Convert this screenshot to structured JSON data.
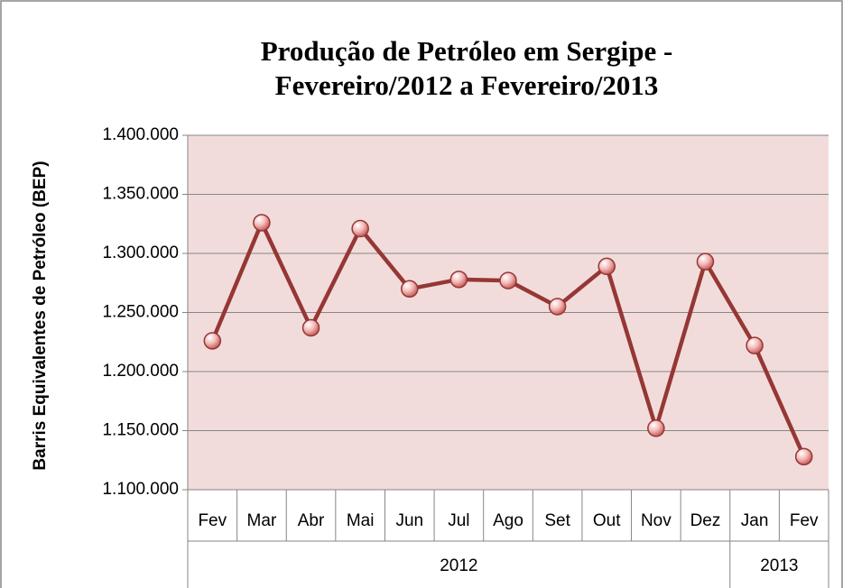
{
  "chart_data": {
    "type": "line",
    "title": "Produção de Petróleo em Sergipe - Fevereiro/2012 a Fevereiro/2013",
    "y_label": "Barris Equivalentes de Petróleo (BEP)",
    "category_groups": [
      {
        "label": "2012",
        "categories": [
          "Fev",
          "Mar",
          "Abr",
          "Mai",
          "Jun",
          "Jul",
          "Ago",
          "Set",
          "Out",
          "Nov",
          "Dez"
        ]
      },
      {
        "label": "2013",
        "categories": [
          "Jan",
          "Fev"
        ]
      }
    ],
    "series": [
      {
        "name": "Produção",
        "color": "#953735",
        "values": [
          1226000,
          1326000,
          1237000,
          1321000,
          1270000,
          1278000,
          1277000,
          1255000,
          1289000,
          1152000,
          1293000,
          1222000,
          1128000
        ]
      }
    ],
    "ylim": [
      1100000,
      1400000
    ],
    "yticks": [
      {
        "value": 1100000,
        "label": "1.100.000"
      },
      {
        "value": 1150000,
        "label": "1.150.000"
      },
      {
        "value": 1200000,
        "label": "1.200.000"
      },
      {
        "value": 1250000,
        "label": "1.250.000"
      },
      {
        "value": 1300000,
        "label": "1.300.000"
      },
      {
        "value": 1350000,
        "label": "1.350.000"
      },
      {
        "value": 1400000,
        "label": "1.400.000"
      }
    ],
    "grid": true,
    "plot_background": "#f2dcdb"
  }
}
